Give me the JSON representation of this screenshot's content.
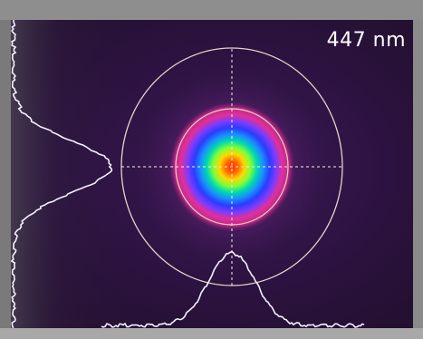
{
  "wavelength_label": "447 nm",
  "colors": {
    "background": "#2a1238",
    "frame": "#8c8c8c",
    "profile_trace": "#f4f0ff",
    "ring": "#e8d8c8",
    "crosshair": "#f0f0f0"
  }
}
